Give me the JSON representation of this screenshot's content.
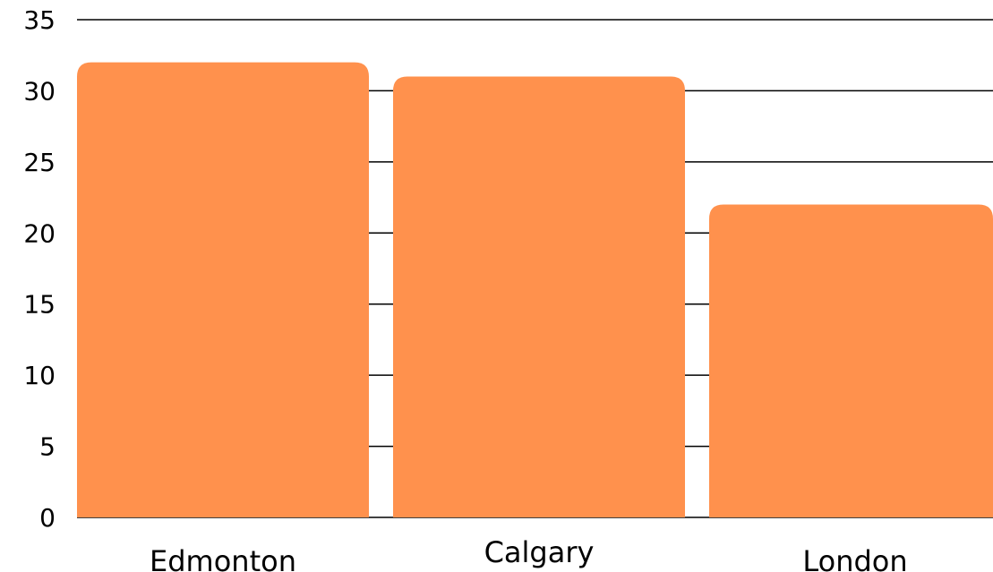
{
  "chart_data": {
    "type": "bar",
    "categories": [
      "Edmonton",
      "Calgary",
      "London"
    ],
    "values": [
      32,
      31,
      22
    ],
    "title": "",
    "xlabel": "",
    "ylabel": "",
    "ylim": [
      0,
      35
    ],
    "yticks": [
      "0",
      "5",
      "10",
      "15",
      "20",
      "25",
      "30",
      "35"
    ],
    "grid": true,
    "bar_color": "#FF914D"
  }
}
